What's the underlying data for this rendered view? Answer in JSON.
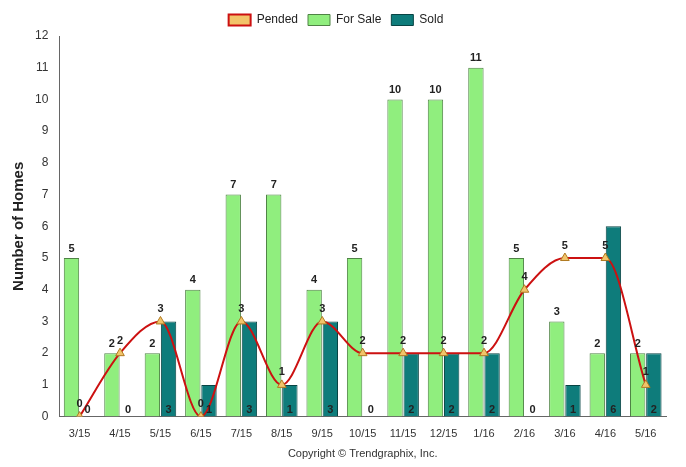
{
  "chart_data": {
    "type": "bar",
    "y_label": "Number of Homes",
    "x_label": "Copyright © Trendgraphix, Inc.",
    "categories": [
      "3/15",
      "4/15",
      "5/15",
      "6/15",
      "7/15",
      "8/15",
      "9/15",
      "10/15",
      "11/15",
      "12/15",
      "1/16",
      "2/16",
      "3/16",
      "4/16",
      "5/16"
    ],
    "series": [
      {
        "name": "For Sale",
        "type": "bar",
        "color": "#90ee7e",
        "values": [
          5,
          2,
          2,
          4,
          7,
          7,
          4,
          5,
          10,
          10,
          11,
          5,
          3,
          2,
          2
        ]
      },
      {
        "name": "Sold",
        "type": "bar",
        "color": "#0e7c7b",
        "values": [
          0,
          0,
          3,
          1,
          3,
          1,
          3,
          0,
          2,
          2,
          2,
          0,
          1,
          6,
          2
        ]
      },
      {
        "name": "Pended",
        "type": "line",
        "color": "#cc1111",
        "marker": "triangle",
        "line_style": "solid",
        "values": [
          0,
          2,
          3,
          0,
          3,
          1,
          3,
          2,
          2,
          2,
          2,
          4,
          5,
          5,
          1
        ]
      }
    ],
    "ylim": [
      0,
      12
    ],
    "yticks": [
      0,
      1,
      2,
      3,
      4,
      5,
      6,
      7,
      8,
      9,
      10,
      11,
      12
    ],
    "grid": false,
    "legend": "top",
    "data_labels": true
  }
}
